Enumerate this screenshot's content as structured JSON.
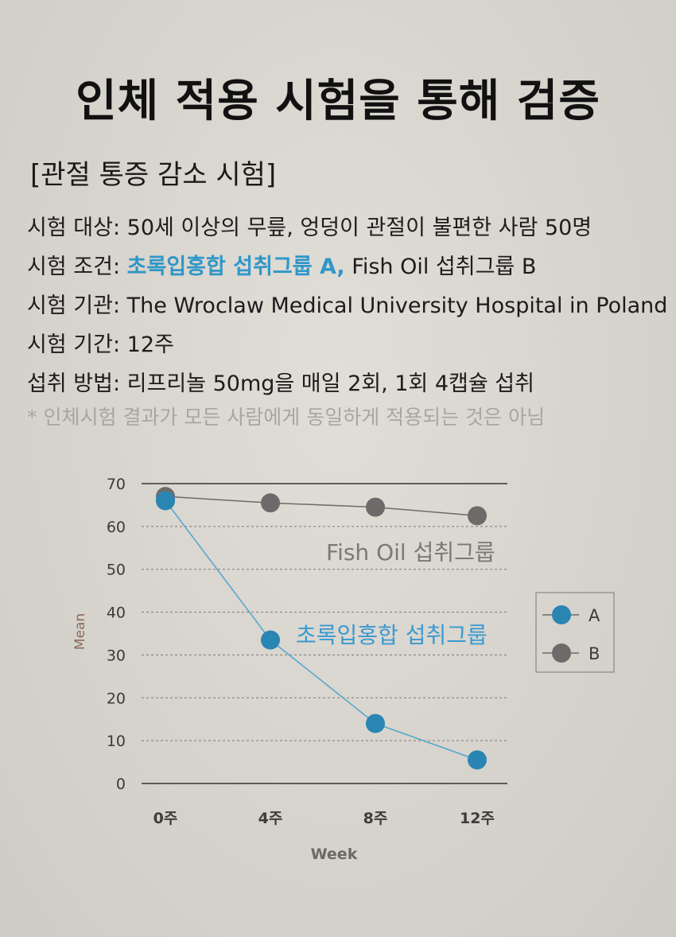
{
  "header": {
    "title": "인체 적용 시험을 통해 검증",
    "subtitle": "[관절 통증 감소 시험]"
  },
  "info": [
    {
      "label": "시험 대상:",
      "text": "50세 이상의 무릎, 엉덩이 관절이 불편한 사람 50명"
    },
    {
      "label": "시험 조건:",
      "highlight": "초록입홍합 섭취그룹 A,",
      "text": "Fish Oil 섭취그룹 B"
    },
    {
      "label": "시험 기관:",
      "text": "The Wroclaw Medical University Hospital in Poland"
    },
    {
      "label": "시험 기간:",
      "text": "12주"
    },
    {
      "label": "섭취 방법:",
      "text": "리프리놀 50mg을 매일 2회, 1회 4캡슐 섭취"
    }
  ],
  "note": "* 인체시험 결과가 모든 사람에게 동일하게 적용되는 것은 아님",
  "chart_data": {
    "type": "line",
    "categories": [
      "0주",
      "4주",
      "8주",
      "12주"
    ],
    "series": [
      {
        "name": "A",
        "values": [
          66,
          33.5,
          14,
          5.5
        ],
        "color": "#2a85b2"
      },
      {
        "name": "B",
        "values": [
          67,
          65.5,
          64.5,
          62.5
        ],
        "color": "#6d6b69"
      }
    ],
    "annotations": [
      {
        "text": "Fish Oil 섭취그룹",
        "color": "#7b7976"
      },
      {
        "text": "초록입홍합 섭취그룹",
        "color": "#3a9ad0"
      }
    ],
    "xlabel": "Week",
    "ylabel": "Mean",
    "ylim": [
      0,
      70
    ],
    "yticks": [
      0,
      10,
      20,
      30,
      40,
      50,
      60,
      70
    ],
    "grid": true,
    "legend": "right"
  }
}
